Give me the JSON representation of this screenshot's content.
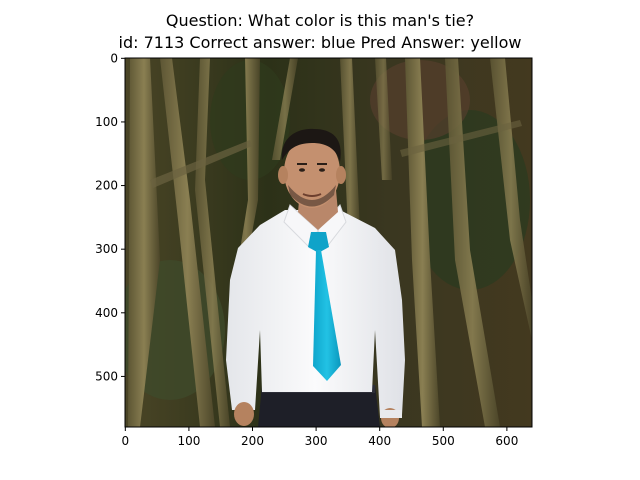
{
  "title": {
    "line1": "Question: What color is this man's tie?",
    "line2": "id: 7113 Correct answer: blue Pred Answer: yellow"
  },
  "axes": {
    "x_ticks": [
      "0",
      "100",
      "200",
      "300",
      "400",
      "500",
      "600"
    ],
    "y_ticks": [
      "0",
      "100",
      "200",
      "300",
      "400",
      "500"
    ]
  },
  "image": {
    "description_icon": "photo-man-white-shirt-blue-tie-trees",
    "colors": {
      "tie": "#12b4d9",
      "shirt": "#f4f4f6",
      "trees": "#3b3a22"
    }
  }
}
